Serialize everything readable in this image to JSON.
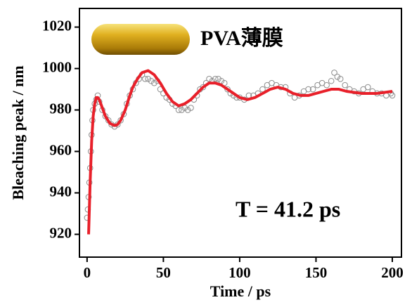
{
  "chart_data": {
    "type": "scatter",
    "xlabel": "Time / ps",
    "ylabel": "Bleaching peak / nm",
    "annotations": [
      "PVA薄膜",
      "T = 41.2 ps"
    ],
    "xlim": [
      -5,
      206
    ],
    "ylim": [
      909,
      1029
    ],
    "xticks": [
      0,
      50,
      100,
      150,
      200
    ],
    "yticks": [
      920,
      940,
      960,
      980,
      1000,
      1020
    ],
    "series": [
      {
        "mode": "markers",
        "color": "#8c8c8c",
        "x": [
          0,
          0.5,
          1,
          1.5,
          2,
          2.5,
          3,
          3.5,
          4,
          5,
          6,
          7,
          8,
          10,
          12,
          14,
          16,
          18,
          20,
          22,
          24,
          26,
          28,
          30,
          32,
          34,
          36,
          38,
          40,
          42,
          44,
          46,
          48,
          50,
          52,
          54,
          56,
          58,
          60,
          62,
          64,
          66,
          68,
          70,
          72,
          74,
          76,
          78,
          80,
          82,
          84,
          86,
          88,
          90,
          92,
          94,
          96,
          98,
          100,
          103,
          106,
          109,
          112,
          115,
          118,
          121,
          124,
          127,
          130,
          133,
          136,
          139,
          142,
          145,
          148,
          151,
          154,
          157,
          160,
          162,
          164,
          166,
          169,
          172,
          175,
          178,
          181,
          184,
          187,
          190,
          193,
          196,
          199,
          200
        ],
        "values": [
          928,
          932,
          938,
          945,
          952,
          960,
          968,
          975,
          980,
          983,
          985,
          987,
          984,
          980,
          977,
          975,
          973,
          972,
          973,
          975,
          978,
          983,
          987,
          990,
          993,
          995,
          997,
          995,
          995,
          994,
          993,
          994,
          990,
          988,
          986,
          985,
          983,
          982,
          980,
          980,
          981,
          980,
          981,
          985,
          987,
          990,
          991,
          993,
          995,
          994,
          995,
          995,
          994,
          993,
          990,
          988,
          987,
          986,
          986,
          985,
          987,
          987,
          988,
          990,
          992,
          993,
          992,
          991,
          991,
          988,
          986,
          987,
          989,
          990,
          990,
          992,
          993,
          992,
          994,
          998,
          996,
          995,
          992,
          990,
          989,
          988,
          990,
          991,
          989,
          988,
          988,
          987,
          988,
          987
        ]
      },
      {
        "mode": "line",
        "color": "#e8202a",
        "x": [
          1,
          2,
          3,
          4,
          5,
          6,
          7,
          8,
          10,
          12,
          15,
          18,
          20,
          22,
          25,
          28,
          30,
          33,
          36,
          40,
          44,
          48,
          52,
          56,
          60,
          64,
          68,
          72,
          76,
          80,
          84,
          88,
          92,
          96,
          100,
          105,
          110,
          115,
          120,
          125,
          130,
          135,
          140,
          145,
          150,
          155,
          160,
          165,
          170,
          175,
          180,
          185,
          190,
          195,
          200
        ],
        "values": [
          920,
          945,
          965,
          977,
          983,
          986,
          986,
          985,
          981,
          977,
          973.5,
          972.5,
          973,
          975,
          980,
          987,
          991,
          995,
          998,
          999,
          997,
          993,
          988,
          984,
          982,
          983,
          985,
          988,
          991,
          993,
          993,
          992,
          990,
          988,
          986,
          985,
          986,
          988,
          990,
          991,
          990,
          988,
          987,
          987,
          988,
          989,
          990,
          990,
          989,
          988.5,
          988,
          988,
          988,
          988.5,
          989
        ]
      }
    ]
  }
}
